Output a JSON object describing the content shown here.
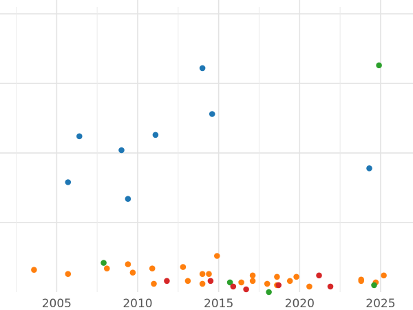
{
  "chart_data": {
    "type": "scatter",
    "title": "",
    "xlabel": "",
    "ylabel": "",
    "xlim": [
      2001.5,
      2027.0
    ],
    "ylim": [
      0,
      20.5
    ],
    "grid": true,
    "legend": "none",
    "x_ticks": [
      2005,
      2010,
      2015,
      2020,
      2025
    ],
    "x_tick_labels": [
      "2005",
      "2010",
      "2015",
      "2020",
      "2025"
    ],
    "x_minor_ticks": [
      2002.5,
      2007.5,
      2012.5,
      2017.5,
      2022.5
    ],
    "y_ticks": [
      5,
      10,
      15,
      20
    ],
    "y_tick_labels": [],
    "series": [
      {
        "color": "#1f77b4",
        "points": [
          {
            "x": 2005.7,
            "y": 7.9
          },
          {
            "x": 2006.4,
            "y": 11.2
          },
          {
            "x": 2009.0,
            "y": 10.2
          },
          {
            "x": 2009.4,
            "y": 6.7
          },
          {
            "x": 2011.1,
            "y": 11.3
          },
          {
            "x": 2014.0,
            "y": 16.1
          },
          {
            "x": 2014.6,
            "y": 12.8
          },
          {
            "x": 2024.3,
            "y": 8.9
          }
        ]
      },
      {
        "color": "#ff7f0e",
        "points": [
          {
            "x": 2003.6,
            "y": 1.6
          },
          {
            "x": 2005.7,
            "y": 1.3
          },
          {
            "x": 2008.1,
            "y": 1.7
          },
          {
            "x": 2009.4,
            "y": 2.0
          },
          {
            "x": 2009.7,
            "y": 1.4
          },
          {
            "x": 2010.9,
            "y": 1.7
          },
          {
            "x": 2011.0,
            "y": 0.6
          },
          {
            "x": 2012.8,
            "y": 1.8
          },
          {
            "x": 2013.1,
            "y": 0.8
          },
          {
            "x": 2014.0,
            "y": 1.3
          },
          {
            "x": 2014.0,
            "y": 0.6
          },
          {
            "x": 2014.4,
            "y": 1.3
          },
          {
            "x": 2014.9,
            "y": 2.6
          },
          {
            "x": 2016.4,
            "y": 0.7
          },
          {
            "x": 2017.1,
            "y": 1.2
          },
          {
            "x": 2017.1,
            "y": 0.8
          },
          {
            "x": 2018.0,
            "y": 0.6
          },
          {
            "x": 2018.6,
            "y": 1.1
          },
          {
            "x": 2018.6,
            "y": 0.5
          },
          {
            "x": 2019.4,
            "y": 0.8
          },
          {
            "x": 2019.8,
            "y": 1.1
          },
          {
            "x": 2020.6,
            "y": 0.4
          },
          {
            "x": 2023.8,
            "y": 0.9
          },
          {
            "x": 2023.8,
            "y": 0.8
          },
          {
            "x": 2024.7,
            "y": 0.7
          },
          {
            "x": 2025.2,
            "y": 1.2
          }
        ]
      },
      {
        "color": "#2ca02c",
        "points": [
          {
            "x": 2007.9,
            "y": 2.1
          },
          {
            "x": 2015.7,
            "y": 0.7
          },
          {
            "x": 2018.1,
            "y": 0.0
          },
          {
            "x": 2024.6,
            "y": 0.5
          },
          {
            "x": 2024.9,
            "y": 16.3
          }
        ]
      },
      {
        "color": "#d62728",
        "points": [
          {
            "x": 2011.8,
            "y": 0.8
          },
          {
            "x": 2014.5,
            "y": 0.8
          },
          {
            "x": 2015.9,
            "y": 0.4
          },
          {
            "x": 2016.7,
            "y": 0.2
          },
          {
            "x": 2018.7,
            "y": 0.5
          },
          {
            "x": 2021.2,
            "y": 1.2
          },
          {
            "x": 2021.9,
            "y": 0.4
          }
        ]
      }
    ]
  }
}
